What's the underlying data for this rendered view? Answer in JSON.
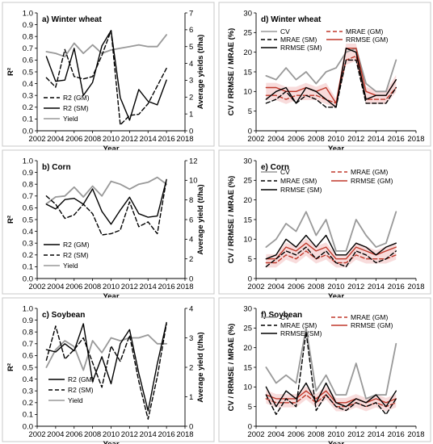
{
  "colors": {
    "black": "#000000",
    "gray": "#999999",
    "red": "#c0392b",
    "red_band": "#f2c0c0",
    "frame": "#c8c8c8"
  },
  "chart_data": [
    {
      "id": "a",
      "type": "line",
      "title": "a) Winter wheat",
      "xlabel": "Year",
      "ylabel": "R²",
      "y2label": "Average yields (t/ha)",
      "xlim": [
        2002,
        2018
      ],
      "xticks": [
        2002,
        2004,
        2006,
        2008,
        2010,
        2012,
        2014,
        2016,
        2018
      ],
      "ylim": [
        0,
        1
      ],
      "yticks": [
        0.0,
        0.1,
        0.2,
        0.3,
        0.4,
        0.5,
        0.6,
        0.7,
        0.8,
        0.9,
        1.0
      ],
      "y2lim": [
        0,
        7
      ],
      "y2ticks": [
        0,
        1,
        2,
        3,
        4,
        5,
        6,
        7
      ],
      "legend_position": "bottom-left",
      "series": [
        {
          "name": "R2 (GM)",
          "axis": "left",
          "style": "dashed",
          "color": "black",
          "x": [
            2003,
            2004,
            2005,
            2006,
            2007,
            2008,
            2009,
            2010,
            2011,
            2012,
            2013,
            2014,
            2015,
            2016
          ],
          "y": [
            0.45,
            0.37,
            0.69,
            0.46,
            0.44,
            0.46,
            0.64,
            0.85,
            0.05,
            0.13,
            0.14,
            0.23,
            0.38,
            0.53
          ]
        },
        {
          "name": "R2 (SM)",
          "axis": "left",
          "style": "solid",
          "color": "black",
          "x": [
            2003,
            2004,
            2005,
            2006,
            2007,
            2008,
            2009,
            2010,
            2011,
            2012,
            2013,
            2014,
            2015,
            2016
          ],
          "y": [
            0.63,
            0.42,
            0.43,
            0.7,
            0.3,
            0.41,
            0.72,
            0.85,
            0.28,
            0.09,
            0.35,
            0.25,
            0.22,
            0.43
          ]
        },
        {
          "name": "Yield",
          "axis": "right",
          "style": "solid",
          "color": "gray",
          "x": [
            2003,
            2004,
            2005,
            2006,
            2007,
            2008,
            2009,
            2010,
            2011,
            2012,
            2013,
            2014,
            2015,
            2016
          ],
          "y": [
            4.7,
            4.6,
            4.4,
            5.2,
            4.6,
            5.1,
            4.6,
            4.8,
            4.9,
            5.0,
            5.1,
            5.0,
            5.0,
            5.7
          ]
        }
      ]
    },
    {
      "id": "b",
      "type": "line",
      "title": "b) Corn",
      "xlabel": "Year",
      "ylabel": "R²",
      "y2label": "Average yield (t/ha)",
      "xlim": [
        2002,
        2018
      ],
      "xticks": [
        2002,
        2004,
        2006,
        2008,
        2010,
        2012,
        2014,
        2016,
        2018
      ],
      "ylim": [
        0,
        1
      ],
      "yticks": [
        0.0,
        0.1,
        0.2,
        0.3,
        0.4,
        0.5,
        0.6,
        0.7,
        0.8,
        0.9,
        1.0
      ],
      "y2lim": [
        0,
        12
      ],
      "y2ticks": [
        0,
        2,
        4,
        6,
        8,
        10,
        12
      ],
      "legend_position": "bottom-left",
      "series": [
        {
          "name": "R2 (GM)",
          "axis": "left",
          "style": "solid",
          "color": "black",
          "x": [
            2003,
            2004,
            2005,
            2006,
            2007,
            2008,
            2009,
            2010,
            2011,
            2012,
            2013,
            2014,
            2015,
            2016
          ],
          "y": [
            0.63,
            0.59,
            0.67,
            0.68,
            0.63,
            0.76,
            0.57,
            0.46,
            0.58,
            0.69,
            0.55,
            0.52,
            0.53,
            0.84
          ]
        },
        {
          "name": "R2 (SM)",
          "axis": "left",
          "style": "dashed",
          "color": "black",
          "x": [
            2003,
            2004,
            2005,
            2006,
            2007,
            2008,
            2009,
            2010,
            2011,
            2012,
            2013,
            2014,
            2015,
            2016
          ],
          "y": [
            0.7,
            0.63,
            0.51,
            0.54,
            0.63,
            0.55,
            0.37,
            0.38,
            0.41,
            0.65,
            0.44,
            0.48,
            0.38,
            0.84
          ]
        },
        {
          "name": "Yield",
          "axis": "right",
          "style": "solid",
          "color": "gray",
          "x": [
            2003,
            2004,
            2005,
            2006,
            2007,
            2008,
            2009,
            2010,
            2011,
            2012,
            2013,
            2014,
            2015,
            2016
          ],
          "y": [
            7.6,
            8.3,
            8.4,
            9.3,
            8.3,
            9.4,
            8.4,
            9.9,
            9.6,
            9.1,
            9.6,
            9.8,
            10.3,
            9.6
          ]
        }
      ]
    },
    {
      "id": "c",
      "type": "line",
      "title": "c) Soybean",
      "xlabel": "Year",
      "ylabel": "R²",
      "y2label": "Average yield (t/ha)",
      "xlim": [
        2002,
        2018
      ],
      "xticks": [
        2002,
        2004,
        2006,
        2008,
        2010,
        2012,
        2014,
        2016,
        2018
      ],
      "ylim": [
        0,
        1
      ],
      "yticks": [
        0.0,
        0.1,
        0.2,
        0.3,
        0.4,
        0.5,
        0.6,
        0.7,
        0.8,
        0.9,
        1.0
      ],
      "y2lim": [
        0,
        4
      ],
      "y2ticks": [
        0,
        1,
        2,
        3,
        4
      ],
      "legend_position": "bottom-right",
      "series": [
        {
          "name": "R2 (GM)",
          "axis": "left",
          "style": "solid",
          "color": "black",
          "x": [
            2003,
            2004,
            2005,
            2006,
            2007,
            2008,
            2009,
            2010,
            2011,
            2012,
            2013,
            2014,
            2015,
            2016
          ],
          "y": [
            0.65,
            0.63,
            0.7,
            0.64,
            0.87,
            0.38,
            0.59,
            0.36,
            0.7,
            0.82,
            0.45,
            0.13,
            0.53,
            0.88
          ]
        },
        {
          "name": "R2 (SM)",
          "axis": "left",
          "style": "dashed",
          "color": "black",
          "x": [
            2003,
            2004,
            2005,
            2006,
            2007,
            2008,
            2009,
            2010,
            2011,
            2012,
            2013,
            2014,
            2015,
            2016
          ],
          "y": [
            0.56,
            0.85,
            0.57,
            0.65,
            0.75,
            0.54,
            0.33,
            0.68,
            0.55,
            0.77,
            0.38,
            0.06,
            0.42,
            0.87
          ]
        },
        {
          "name": "Yield",
          "axis": "right",
          "style": "solid",
          "color": "gray",
          "x": [
            2003,
            2004,
            2005,
            2006,
            2007,
            2008,
            2009,
            2010,
            2011,
            2012,
            2013,
            2014,
            2015,
            2016
          ],
          "y": [
            2.0,
            2.6,
            2.9,
            2.7,
            1.9,
            2.9,
            2.5,
            3.0,
            2.9,
            3.0,
            3.0,
            3.1,
            2.8,
            2.8
          ]
        }
      ]
    },
    {
      "id": "d",
      "type": "line",
      "title": "d) Winter wheat",
      "xlabel": "Year",
      "ylabel": "CV / RRMSE / MRAE (%)",
      "xlim": [
        2002,
        2018
      ],
      "xticks": [
        2002,
        2004,
        2006,
        2008,
        2010,
        2012,
        2014,
        2016,
        2018
      ],
      "ylim": [
        0,
        30
      ],
      "yticks": [
        0,
        5,
        10,
        15,
        20,
        25,
        30
      ],
      "legend_position": "top",
      "series": [
        {
          "name": "CV",
          "style": "solid",
          "color": "gray",
          "x": [
            2003,
            2004,
            2005,
            2006,
            2007,
            2008,
            2009,
            2010,
            2011,
            2012,
            2013,
            2014,
            2015,
            2016
          ],
          "y": [
            14,
            13,
            16,
            13,
            15,
            12,
            15,
            16,
            20,
            21,
            12,
            10,
            10,
            18
          ]
        },
        {
          "name": "MRAE (SM)",
          "style": "dashed",
          "color": "black",
          "x": [
            2003,
            2004,
            2005,
            2006,
            2007,
            2008,
            2009,
            2010,
            2011,
            2012,
            2013,
            2014,
            2015,
            2016
          ],
          "y": [
            7,
            8,
            10,
            7,
            9,
            8,
            6,
            6,
            18,
            18,
            7,
            7,
            7,
            11
          ]
        },
        {
          "name": "RRMSE (SM)",
          "style": "solid",
          "color": "black",
          "x": [
            2003,
            2004,
            2005,
            2006,
            2007,
            2008,
            2009,
            2010,
            2011,
            2012,
            2013,
            2014,
            2015,
            2016
          ],
          "y": [
            8,
            10,
            11,
            7,
            11,
            10,
            8,
            6,
            21,
            20,
            8,
            9,
            9,
            13
          ]
        },
        {
          "name": "MRAE (GM)",
          "style": "dashed",
          "color": "red",
          "x": [
            2003,
            2004,
            2005,
            2006,
            2007,
            2008,
            2009,
            2010,
            2011,
            2012,
            2013,
            2014,
            2015,
            2016
          ],
          "y": [
            9,
            9,
            8,
            9,
            9,
            9,
            8,
            7,
            18,
            19,
            8,
            8,
            8,
            11
          ]
        },
        {
          "name": "RRMSE (GM)",
          "style": "solid",
          "color": "red",
          "x": [
            2003,
            2004,
            2005,
            2006,
            2007,
            2008,
            2009,
            2010,
            2011,
            2012,
            2013,
            2014,
            2015,
            2016
          ],
          "y": [
            11,
            11,
            10,
            10,
            11,
            10,
            11,
            7,
            21,
            21,
            10,
            9,
            9,
            13
          ]
        }
      ]
    },
    {
      "id": "e",
      "type": "line",
      "title": "e) Corn",
      "xlabel": "Year",
      "ylabel": "CV / RRMSE / MRAE (%)",
      "xlim": [
        2002,
        2018
      ],
      "xticks": [
        2002,
        2004,
        2006,
        2008,
        2010,
        2012,
        2014,
        2016,
        2018
      ],
      "ylim": [
        0,
        30
      ],
      "yticks": [
        0,
        5,
        10,
        15,
        20,
        25,
        30
      ],
      "legend_position": "top",
      "series": [
        {
          "name": "CV",
          "style": "solid",
          "color": "gray",
          "x": [
            2003,
            2004,
            2005,
            2006,
            2007,
            2008,
            2009,
            2010,
            2011,
            2012,
            2013,
            2014,
            2015,
            2016
          ],
          "y": [
            8,
            10,
            14,
            12,
            17,
            11,
            15,
            7,
            7,
            15,
            11,
            8,
            9,
            17
          ]
        },
        {
          "name": "MRAE (SM)",
          "style": "dashed",
          "color": "black",
          "x": [
            2003,
            2004,
            2005,
            2006,
            2007,
            2008,
            2009,
            2010,
            2011,
            2012,
            2013,
            2014,
            2015,
            2016
          ],
          "y": [
            3,
            5,
            7,
            6,
            8,
            5,
            7,
            4,
            3,
            7,
            6,
            4,
            5,
            7
          ]
        },
        {
          "name": "RRMSE (SM)",
          "style": "solid",
          "color": "black",
          "x": [
            2003,
            2004,
            2005,
            2006,
            2007,
            2008,
            2009,
            2010,
            2011,
            2012,
            2013,
            2014,
            2015,
            2016
          ],
          "y": [
            5,
            6,
            10,
            8,
            11,
            8,
            11,
            6,
            6,
            9,
            8,
            6,
            8,
            9
          ]
        },
        {
          "name": "MRAE (GM)",
          "style": "dashed",
          "color": "red",
          "x": [
            2003,
            2004,
            2005,
            2006,
            2007,
            2008,
            2009,
            2010,
            2011,
            2012,
            2013,
            2014,
            2015,
            2016
          ],
          "y": [
            4,
            4,
            6,
            5,
            7,
            5,
            6,
            4,
            4,
            6,
            5,
            5,
            5,
            6
          ]
        },
        {
          "name": "RRMSE (GM)",
          "style": "solid",
          "color": "red",
          "x": [
            2003,
            2004,
            2005,
            2006,
            2007,
            2008,
            2009,
            2010,
            2011,
            2012,
            2013,
            2014,
            2015,
            2016
          ],
          "y": [
            5,
            5,
            8,
            7,
            9,
            7,
            8,
            5,
            5,
            8,
            7,
            6,
            7,
            8
          ]
        }
      ]
    },
    {
      "id": "f",
      "type": "line",
      "title": "f) Soybean",
      "xlabel": "Year",
      "ylabel": "CV / RRMSE / MRAE (%)",
      "xlim": [
        2002,
        2018
      ],
      "xticks": [
        2002,
        2004,
        2006,
        2008,
        2010,
        2012,
        2014,
        2016,
        2018
      ],
      "ylim": [
        0,
        30
      ],
      "yticks": [
        0,
        5,
        10,
        15,
        20,
        25,
        30
      ],
      "legend_position": "top",
      "series": [
        {
          "name": "CV",
          "style": "solid",
          "color": "gray",
          "x": [
            2003,
            2004,
            2005,
            2006,
            2007,
            2008,
            2009,
            2010,
            2011,
            2012,
            2013,
            2014,
            2015,
            2016
          ],
          "y": [
            15,
            11,
            13,
            11,
            25,
            9,
            13,
            8,
            8,
            16,
            7,
            8,
            8,
            21
          ]
        },
        {
          "name": "MRAE (SM)",
          "style": "dashed",
          "color": "black",
          "x": [
            2003,
            2004,
            2005,
            2006,
            2007,
            2008,
            2009,
            2010,
            2011,
            2012,
            2013,
            2014,
            2015,
            2016
          ],
          "y": [
            8,
            3,
            7,
            5,
            24,
            4,
            8,
            5,
            4,
            6,
            5,
            6,
            3,
            7
          ]
        },
        {
          "name": "RRMSE (SM)",
          "style": "solid",
          "color": "black",
          "x": [
            2003,
            2004,
            2005,
            2006,
            2007,
            2008,
            2009,
            2010,
            2011,
            2012,
            2013,
            2014,
            2015,
            2016
          ],
          "y": [
            10,
            5,
            9,
            7,
            11,
            6,
            11,
            6,
            5,
            7,
            6,
            8,
            5,
            9
          ]
        },
        {
          "name": "MRAE (GM)",
          "style": "dashed",
          "color": "red",
          "x": [
            2003,
            2004,
            2005,
            2006,
            2007,
            2008,
            2009,
            2010,
            2011,
            2012,
            2013,
            2014,
            2015,
            2016
          ],
          "y": [
            7,
            6,
            6,
            6,
            8,
            6,
            8,
            5,
            5,
            6,
            5,
            6,
            5,
            6
          ]
        },
        {
          "name": "RRMSE (GM)",
          "style": "solid",
          "color": "red",
          "x": [
            2003,
            2004,
            2005,
            2006,
            2007,
            2008,
            2009,
            2010,
            2011,
            2012,
            2013,
            2014,
            2015,
            2016
          ],
          "y": [
            8,
            7,
            7,
            7,
            9,
            7,
            9,
            6,
            6,
            7,
            6,
            7,
            6,
            7
          ]
        }
      ]
    }
  ]
}
